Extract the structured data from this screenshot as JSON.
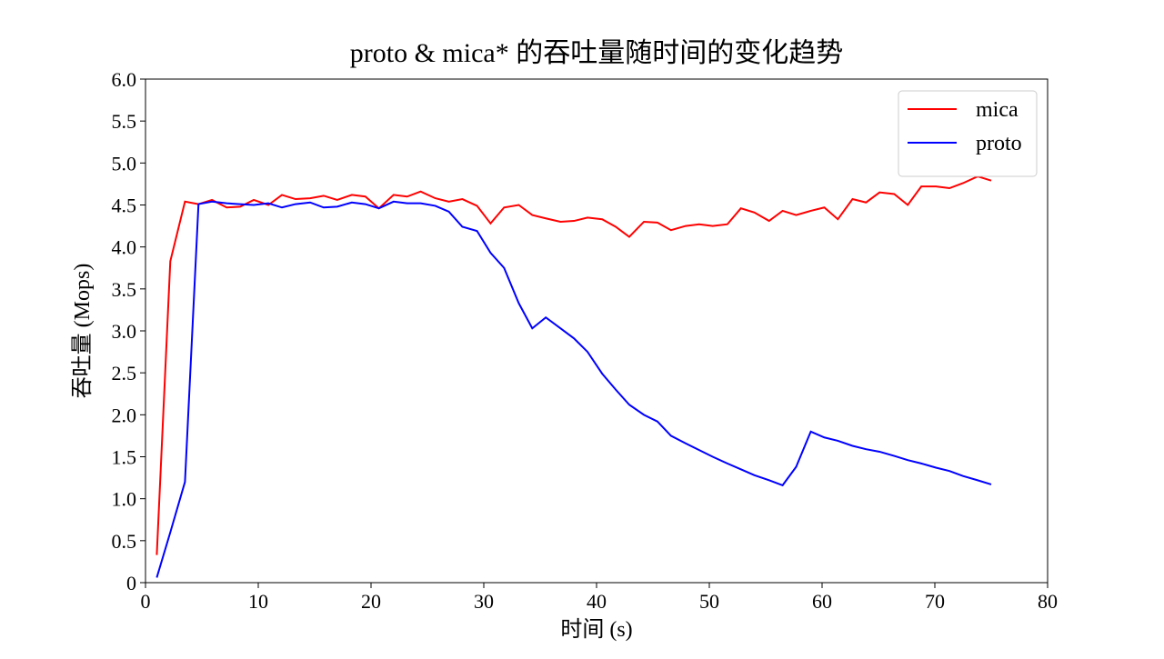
{
  "chart_data": {
    "type": "line",
    "title": "proto & mica* 的吞吐量随时间的变化趋势",
    "xlabel": "时间 (s)",
    "ylabel": "吞吐量 (Mops)",
    "x": [
      1.0,
      2.2,
      3.5,
      4.7,
      5.9,
      7.2,
      8.4,
      9.6,
      10.9,
      12.1,
      13.3,
      14.6,
      15.8,
      17.0,
      18.3,
      19.5,
      20.7,
      22.0,
      23.2,
      24.4,
      25.7,
      26.9,
      28.1,
      29.4,
      30.6,
      31.8,
      33.1,
      34.3,
      35.5,
      36.8,
      38.0,
      39.2,
      40.5,
      41.7,
      42.9,
      44.2,
      45.4,
      46.6,
      47.9,
      49.1,
      50.3,
      51.6,
      52.8,
      54.0,
      55.3,
      56.5,
      57.7,
      59.0,
      60.2,
      61.4,
      62.7,
      63.9,
      65.1,
      66.4,
      67.6,
      68.8,
      70.1,
      71.3,
      72.5,
      73.8,
      75.0
    ],
    "series": [
      {
        "name": "mica",
        "color": "#ff0000",
        "values": [
          0.33,
          3.83,
          4.54,
          4.51,
          4.56,
          4.47,
          4.48,
          4.56,
          4.5,
          4.62,
          4.57,
          4.58,
          4.61,
          4.56,
          4.62,
          4.6,
          4.46,
          4.62,
          4.6,
          4.66,
          4.58,
          4.54,
          4.57,
          4.49,
          4.28,
          4.47,
          4.5,
          4.38,
          4.34,
          4.3,
          4.31,
          4.35,
          4.33,
          4.24,
          4.12,
          4.3,
          4.29,
          4.2,
          4.25,
          4.27,
          4.25,
          4.27,
          4.46,
          4.41,
          4.31,
          4.43,
          4.38,
          4.43,
          4.47,
          4.33,
          4.57,
          4.53,
          4.65,
          4.63,
          4.5,
          4.72,
          4.72,
          4.7,
          4.76,
          4.84,
          4.79
        ]
      },
      {
        "name": "proto",
        "color": "#0000ff",
        "values": [
          0.06,
          0.6,
          1.2,
          4.51,
          4.54,
          4.52,
          4.51,
          4.5,
          4.52,
          4.47,
          4.51,
          4.53,
          4.47,
          4.48,
          4.53,
          4.51,
          4.46,
          4.54,
          4.52,
          4.52,
          4.49,
          4.42,
          4.24,
          4.19,
          3.93,
          3.75,
          3.33,
          3.03,
          3.16,
          3.03,
          2.91,
          2.75,
          2.49,
          2.3,
          2.12,
          2.0,
          1.92,
          1.75,
          1.66,
          1.58,
          1.5,
          1.42,
          1.35,
          1.28,
          1.22,
          1.16,
          1.38,
          1.8,
          1.73,
          1.69,
          1.63,
          1.59,
          1.56,
          1.51,
          1.46,
          1.42,
          1.37,
          1.33,
          1.27,
          1.22,
          1.17
        ]
      }
    ],
    "xlim": [
      0,
      80
    ],
    "xticks": [
      0,
      10,
      20,
      30,
      40,
      50,
      60,
      70,
      80
    ],
    "ylim": [
      0,
      6
    ],
    "yticks": [
      0,
      0.5,
      {
        "value": 1,
        "label": "1.0"
      },
      1.5,
      {
        "value": 2,
        "label": "2.0"
      },
      2.5,
      {
        "value": 3,
        "label": "3.0"
      },
      3.5,
      {
        "value": 4,
        "label": "4.0"
      },
      4.5,
      {
        "value": 5,
        "label": "5.0"
      },
      5.5,
      {
        "value": 6,
        "label": "6.0"
      }
    ],
    "legend": "upper right",
    "grid": false
  }
}
